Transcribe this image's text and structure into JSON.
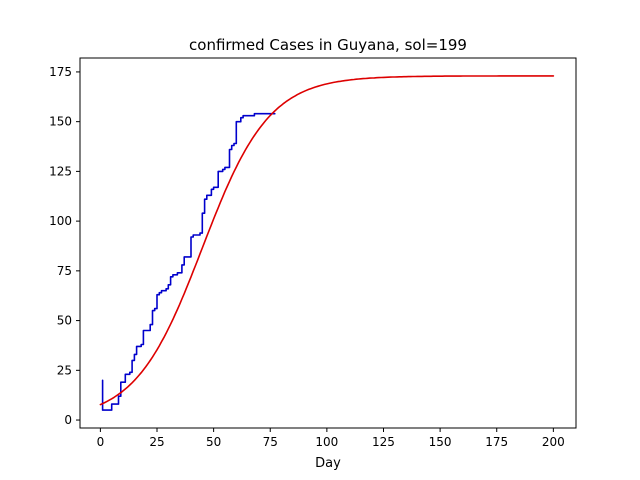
{
  "chart_data": {
    "type": "line",
    "title": "confirmed Cases in Guyana, sol=199",
    "xlabel": "Day",
    "ylabel": "",
    "xlim": [
      -9,
      210
    ],
    "ylim": [
      -4,
      182
    ],
    "xticks": [
      0,
      25,
      50,
      75,
      100,
      125,
      150,
      175,
      200
    ],
    "yticks": [
      0,
      25,
      50,
      75,
      100,
      125,
      150,
      175
    ],
    "grid": false,
    "legend": "none",
    "series": [
      {
        "color": "#0000cc",
        "style": "step",
        "x": [
          1,
          2,
          3,
          4,
          5,
          6,
          7,
          8,
          9,
          10,
          11,
          12,
          13,
          14,
          15,
          16,
          17,
          18,
          19,
          20,
          21,
          22,
          23,
          24,
          25,
          26,
          27,
          28,
          29,
          30,
          31,
          32,
          33,
          34,
          35,
          36,
          37,
          38,
          39,
          40,
          41,
          42,
          43,
          44,
          45,
          46,
          47,
          48,
          49,
          50,
          51,
          52,
          53,
          54,
          55,
          56,
          57,
          58,
          59,
          60,
          61,
          62,
          63,
          64,
          65,
          66,
          67,
          68,
          69,
          70,
          71,
          72,
          73,
          74,
          75,
          76,
          77
        ],
        "y": [
          20,
          5,
          5,
          5,
          5,
          8,
          8,
          8,
          12,
          19,
          19,
          23,
          23,
          24,
          30,
          33,
          37,
          37,
          38,
          45,
          45,
          45,
          48,
          55,
          56,
          63,
          64,
          65,
          65,
          66,
          68,
          72,
          73,
          73,
          74,
          74,
          78,
          82,
          82,
          82,
          92,
          93,
          93,
          93,
          94,
          104,
          111,
          113,
          113,
          116,
          117,
          117,
          125,
          125,
          126,
          127,
          127,
          136,
          138,
          139,
          150,
          150,
          152,
          153,
          153,
          153,
          153,
          153,
          154,
          154,
          154,
          154,
          154,
          154,
          154,
          154,
          154
        ]
      },
      {
        "color": "#dd0000",
        "style": "logistic-fit",
        "x_start": 0,
        "x_end": 200,
        "params": {
          "K": 173,
          "r": 0.068,
          "t0": 45
        }
      }
    ]
  }
}
